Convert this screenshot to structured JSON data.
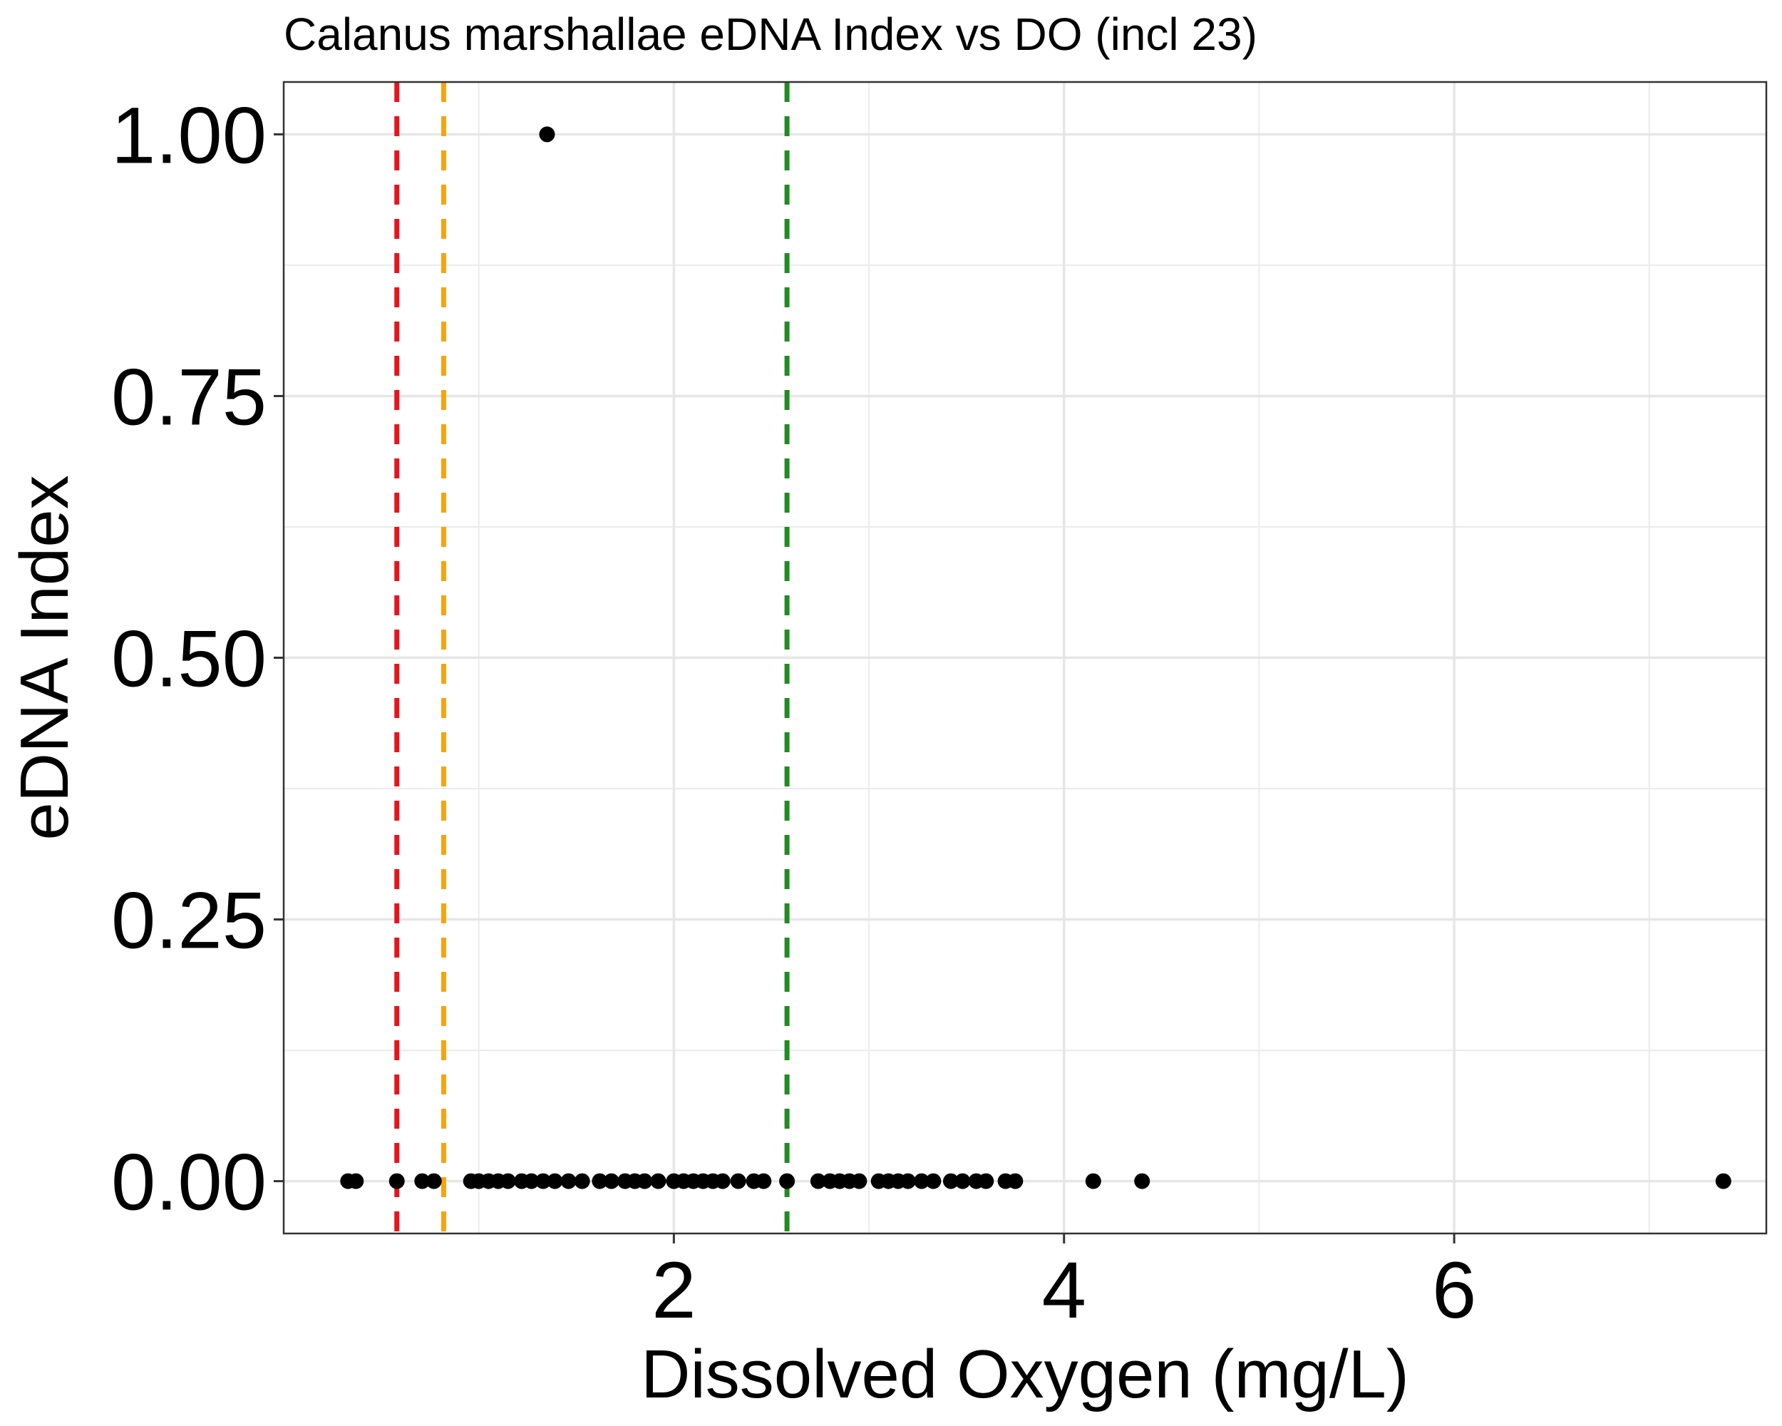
{
  "chart_data": {
    "type": "scatter",
    "title": "Calanus marshallae eDNA Index vs DO (incl 23)",
    "xlabel": "Dissolved Oxygen (mg/L)",
    "ylabel": "eDNA Index",
    "xlim": [
      0.0,
      7.6
    ],
    "ylim": [
      -0.05,
      1.05
    ],
    "x_ticks": [
      2,
      4,
      6
    ],
    "x_tick_labels": [
      "2",
      "4",
      "6"
    ],
    "x_minor_ticks": [
      1,
      3,
      5,
      7
    ],
    "y_ticks": [
      0.0,
      0.25,
      0.5,
      0.75,
      1.0
    ],
    "y_tick_labels": [
      "0.00",
      "0.25",
      "0.50",
      "0.75",
      "1.00"
    ],
    "y_minor_ticks": [
      0.125,
      0.375,
      0.625,
      0.875
    ],
    "grid": true,
    "reference_lines": [
      {
        "x": 0.58,
        "color": "#e8141c",
        "style": "dashed"
      },
      {
        "x": 0.82,
        "color": "#f5a40f",
        "style": "dashed"
      },
      {
        "x": 2.58,
        "color": "#228b22",
        "style": "dashed"
      }
    ],
    "point_color": "#000000",
    "points": [
      {
        "x": 1.35,
        "y": 1.0
      },
      {
        "x": 0.33,
        "y": 0.0
      },
      {
        "x": 0.37,
        "y": 0.0
      },
      {
        "x": 0.58,
        "y": 0.0
      },
      {
        "x": 0.71,
        "y": 0.0
      },
      {
        "x": 0.77,
        "y": 0.0
      },
      {
        "x": 0.96,
        "y": 0.0
      },
      {
        "x": 1.0,
        "y": 0.0
      },
      {
        "x": 1.05,
        "y": 0.0
      },
      {
        "x": 1.1,
        "y": 0.0
      },
      {
        "x": 1.15,
        "y": 0.0
      },
      {
        "x": 1.22,
        "y": 0.0
      },
      {
        "x": 1.27,
        "y": 0.0
      },
      {
        "x": 1.33,
        "y": 0.0
      },
      {
        "x": 1.39,
        "y": 0.0
      },
      {
        "x": 1.46,
        "y": 0.0
      },
      {
        "x": 1.53,
        "y": 0.0
      },
      {
        "x": 1.62,
        "y": 0.0
      },
      {
        "x": 1.68,
        "y": 0.0
      },
      {
        "x": 1.75,
        "y": 0.0
      },
      {
        "x": 1.8,
        "y": 0.0
      },
      {
        "x": 1.85,
        "y": 0.0
      },
      {
        "x": 1.92,
        "y": 0.0
      },
      {
        "x": 2.0,
        "y": 0.0
      },
      {
        "x": 2.05,
        "y": 0.0
      },
      {
        "x": 2.1,
        "y": 0.0
      },
      {
        "x": 2.15,
        "y": 0.0
      },
      {
        "x": 2.2,
        "y": 0.0
      },
      {
        "x": 2.25,
        "y": 0.0
      },
      {
        "x": 2.33,
        "y": 0.0
      },
      {
        "x": 2.41,
        "y": 0.0
      },
      {
        "x": 2.46,
        "y": 0.0
      },
      {
        "x": 2.58,
        "y": 0.0
      },
      {
        "x": 2.74,
        "y": 0.0
      },
      {
        "x": 2.8,
        "y": 0.0
      },
      {
        "x": 2.85,
        "y": 0.0
      },
      {
        "x": 2.9,
        "y": 0.0
      },
      {
        "x": 2.95,
        "y": 0.0
      },
      {
        "x": 3.05,
        "y": 0.0
      },
      {
        "x": 3.1,
        "y": 0.0
      },
      {
        "x": 3.15,
        "y": 0.0
      },
      {
        "x": 3.2,
        "y": 0.0
      },
      {
        "x": 3.27,
        "y": 0.0
      },
      {
        "x": 3.33,
        "y": 0.0
      },
      {
        "x": 3.42,
        "y": 0.0
      },
      {
        "x": 3.48,
        "y": 0.0
      },
      {
        "x": 3.55,
        "y": 0.0
      },
      {
        "x": 3.6,
        "y": 0.0
      },
      {
        "x": 3.7,
        "y": 0.0
      },
      {
        "x": 3.75,
        "y": 0.0
      },
      {
        "x": 4.15,
        "y": 0.0
      },
      {
        "x": 4.4,
        "y": 0.0
      },
      {
        "x": 7.38,
        "y": 0.0
      }
    ]
  }
}
